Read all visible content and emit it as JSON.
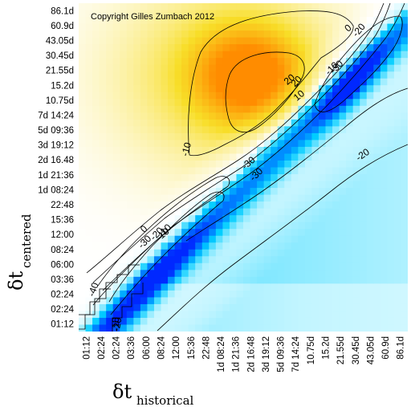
{
  "chart_data": {
    "type": "heatmap",
    "copyright": "Copyright Gilles Zumbach 2012",
    "xlabel": {
      "main": "δt",
      "sub": "historical"
    },
    "ylabel": {
      "main": "δt",
      "sub": "centered"
    },
    "x_tick_labels": [
      "01:12",
      "02:24",
      "02:24",
      "03:36",
      "06:00",
      "08:24",
      "12:00",
      "15:36",
      "22:48",
      "1d 08:24",
      "1d 21:36",
      "2d 16:48",
      "3d 19:12",
      "5d 09:36",
      "7d 14:24",
      "10.75d",
      "15.2d",
      "21.55d",
      "30.45d",
      "43.05d",
      "60.9d",
      "86.1d"
    ],
    "y_tick_labels": [
      "01:12",
      "02:24",
      "02:24",
      "03:36",
      "06:00",
      "08:24",
      "12:00",
      "15:36",
      "22:48",
      "1d 08:24",
      "1d 21:36",
      "2d 16.48",
      "3d 19:12",
      "5d 09:36",
      "7d 14:24",
      "10.75d",
      "15.2d",
      "21.55d",
      "30.45d",
      "43.05d",
      "60.9d",
      "86.1d"
    ],
    "contour_labels": [
      "20",
      "10",
      "0",
      "-10",
      "-20",
      "-30",
      "-40",
      "-20",
      "-30",
      "-20",
      "-10",
      "-10",
      "-20",
      "-30",
      "0",
      "-10",
      "-10",
      "20",
      "-30"
    ],
    "colors": {
      "positive": "#f5c400",
      "positive_peak": "#ff8c00",
      "negative": "#0026ff",
      "negative_mid": "#00c8ff",
      "zero": "#ffffff"
    },
    "grid": false,
    "legend": "none"
  }
}
